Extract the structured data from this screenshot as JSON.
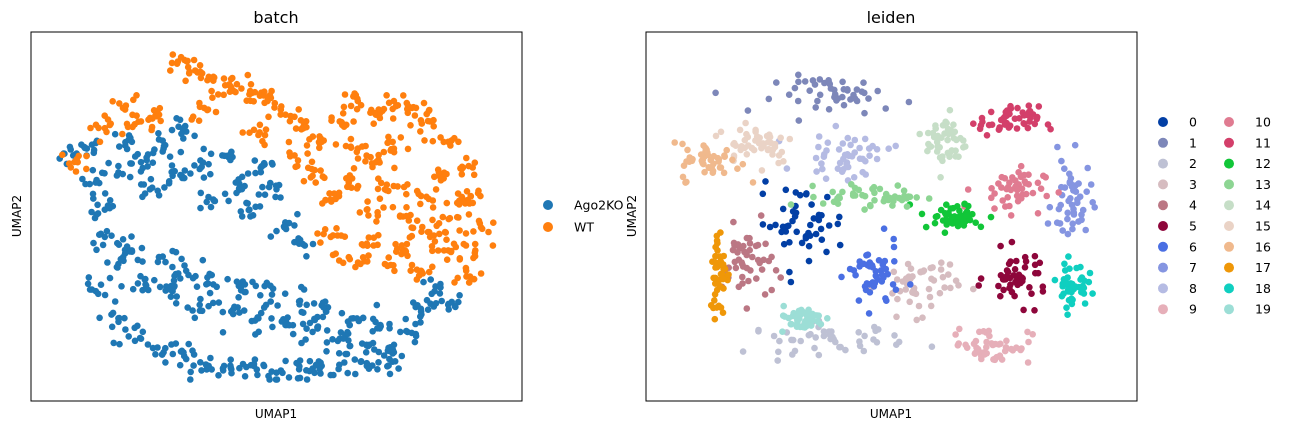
{
  "chart_data": [
    {
      "type": "scatter",
      "title": "batch",
      "xlabel": "UMAP1",
      "ylabel": "UMAP2",
      "xlim": [
        0,
        1
      ],
      "ylim": [
        0,
        1
      ],
      "grid": false,
      "legend_position": "right",
      "series": [
        {
          "name": "Ago2KO",
          "color": "#1f77b4",
          "points": [
            [
              0.05,
              0.68
            ],
            [
              0.08,
              0.7
            ],
            [
              0.1,
              0.6
            ],
            [
              0.12,
              0.52
            ],
            [
              0.15,
              0.63
            ],
            [
              0.18,
              0.72
            ],
            [
              0.2,
              0.66
            ],
            [
              0.22,
              0.58
            ],
            [
              0.25,
              0.7
            ],
            [
              0.27,
              0.62
            ],
            [
              0.3,
              0.75
            ],
            [
              0.33,
              0.64
            ],
            [
              0.36,
              0.55
            ],
            [
              0.38,
              0.68
            ],
            [
              0.41,
              0.6
            ],
            [
              0.44,
              0.52
            ],
            [
              0.47,
              0.65
            ],
            [
              0.5,
              0.58
            ],
            [
              0.52,
              0.48
            ],
            [
              0.55,
              0.42
            ],
            [
              0.12,
              0.44
            ],
            [
              0.15,
              0.36
            ],
            [
              0.18,
              0.4
            ],
            [
              0.21,
              0.3
            ],
            [
              0.24,
              0.38
            ],
            [
              0.27,
              0.28
            ],
            [
              0.3,
              0.34
            ],
            [
              0.33,
              0.24
            ],
            [
              0.36,
              0.3
            ],
            [
              0.4,
              0.22
            ],
            [
              0.43,
              0.3
            ],
            [
              0.46,
              0.2
            ],
            [
              0.49,
              0.27
            ],
            [
              0.52,
              0.18
            ],
            [
              0.55,
              0.25
            ],
            [
              0.58,
              0.16
            ],
            [
              0.61,
              0.22
            ],
            [
              0.64,
              0.14
            ],
            [
              0.67,
              0.2
            ],
            [
              0.7,
              0.12
            ],
            [
              0.73,
              0.18
            ],
            [
              0.76,
              0.1
            ],
            [
              0.79,
              0.16
            ],
            [
              0.82,
              0.22
            ],
            [
              0.85,
              0.28
            ],
            [
              0.88,
              0.24
            ],
            [
              0.2,
              0.14
            ],
            [
              0.25,
              0.1
            ],
            [
              0.3,
              0.08
            ],
            [
              0.35,
              0.06
            ],
            [
              0.4,
              0.05
            ],
            [
              0.45,
              0.06
            ],
            [
              0.5,
              0.04
            ],
            [
              0.55,
              0.05
            ],
            [
              0.6,
              0.06
            ],
            [
              0.65,
              0.07
            ],
            [
              0.7,
              0.06
            ],
            [
              0.75,
              0.08
            ],
            [
              0.15,
              0.2
            ],
            [
              0.1,
              0.28
            ]
          ]
        },
        {
          "name": "WT",
          "color": "#ff7f0e",
          "points": [
            [
              0.28,
              0.95
            ],
            [
              0.32,
              0.93
            ],
            [
              0.36,
              0.9
            ],
            [
              0.4,
              0.88
            ],
            [
              0.44,
              0.86
            ],
            [
              0.48,
              0.84
            ],
            [
              0.52,
              0.8
            ],
            [
              0.56,
              0.76
            ],
            [
              0.6,
              0.72
            ],
            [
              0.64,
              0.78
            ],
            [
              0.68,
              0.84
            ],
            [
              0.72,
              0.8
            ],
            [
              0.76,
              0.84
            ],
            [
              0.8,
              0.82
            ],
            [
              0.84,
              0.78
            ],
            [
              0.88,
              0.72
            ],
            [
              0.91,
              0.64
            ],
            [
              0.93,
              0.56
            ],
            [
              0.95,
              0.48
            ],
            [
              0.94,
              0.4
            ],
            [
              0.92,
              0.34
            ],
            [
              0.58,
              0.62
            ],
            [
              0.62,
              0.55
            ],
            [
              0.66,
              0.6
            ],
            [
              0.7,
              0.52
            ],
            [
              0.74,
              0.58
            ],
            [
              0.78,
              0.5
            ],
            [
              0.82,
              0.56
            ],
            [
              0.86,
              0.48
            ],
            [
              0.88,
              0.4
            ],
            [
              0.62,
              0.44
            ],
            [
              0.66,
              0.38
            ],
            [
              0.7,
              0.42
            ],
            [
              0.74,
              0.36
            ],
            [
              0.78,
              0.4
            ],
            [
              0.82,
              0.34
            ],
            [
              0.84,
              0.44
            ],
            [
              0.76,
              0.7
            ],
            [
              0.72,
              0.66
            ],
            [
              0.68,
              0.7
            ],
            [
              0.24,
              0.8
            ],
            [
              0.2,
              0.78
            ],
            [
              0.16,
              0.82
            ],
            [
              0.12,
              0.76
            ],
            [
              0.06,
              0.66
            ],
            [
              0.34,
              0.82
            ],
            [
              0.46,
              0.74
            ],
            [
              0.54,
              0.68
            ],
            [
              0.86,
              0.62
            ],
            [
              0.9,
              0.54
            ]
          ]
        }
      ]
    },
    {
      "type": "scatter",
      "title": "leiden",
      "xlabel": "UMAP1",
      "ylabel": "UMAP2",
      "xlim": [
        0,
        1
      ],
      "ylim": [
        0,
        1
      ],
      "grid": false,
      "legend_position": "right",
      "series": [
        {
          "name": "0",
          "color": "#023fa5",
          "center": [
            0.3,
            0.48
          ],
          "spread": [
            0.09,
            0.1
          ]
        },
        {
          "name": "1",
          "color": "#7d87b9",
          "center": [
            0.4,
            0.86
          ],
          "spread": [
            0.14,
            0.05
          ]
        },
        {
          "name": "2",
          "color": "#bec1d4",
          "center": [
            0.36,
            0.14
          ],
          "spread": [
            0.16,
            0.04
          ]
        },
        {
          "name": "3",
          "color": "#d6bcc0",
          "center": [
            0.56,
            0.3
          ],
          "spread": [
            0.08,
            0.08
          ]
        },
        {
          "name": "4",
          "color": "#bb7784",
          "center": [
            0.18,
            0.36
          ],
          "spread": [
            0.05,
            0.1
          ]
        },
        {
          "name": "5",
          "color": "#8e063b",
          "center": [
            0.78,
            0.32
          ],
          "spread": [
            0.06,
            0.07
          ]
        },
        {
          "name": "6",
          "color": "#4a6fe3",
          "center": [
            0.46,
            0.32
          ],
          "spread": [
            0.05,
            0.09
          ]
        },
        {
          "name": "7",
          "color": "#8595e1",
          "center": [
            0.9,
            0.54
          ],
          "spread": [
            0.04,
            0.12
          ]
        },
        {
          "name": "8",
          "color": "#b5bbe3",
          "center": [
            0.4,
            0.68
          ],
          "spread": [
            0.09,
            0.06
          ]
        },
        {
          "name": "9",
          "color": "#e6afb9",
          "center": [
            0.72,
            0.12
          ],
          "spread": [
            0.08,
            0.05
          ]
        },
        {
          "name": "10",
          "color": "#e07b91",
          "center": [
            0.76,
            0.58
          ],
          "spread": [
            0.07,
            0.06
          ]
        },
        {
          "name": "11",
          "color": "#d33f6a",
          "center": [
            0.76,
            0.78
          ],
          "spread": [
            0.06,
            0.04
          ]
        },
        {
          "name": "12",
          "color": "#11c638",
          "center": [
            0.64,
            0.5
          ],
          "spread": [
            0.07,
            0.04
          ]
        },
        {
          "name": "13",
          "color": "#8dd593",
          "center": [
            0.46,
            0.56
          ],
          "spread": [
            0.1,
            0.03
          ]
        },
        {
          "name": "14",
          "color": "#c6dec7",
          "center": [
            0.62,
            0.72
          ],
          "spread": [
            0.04,
            0.08
          ]
        },
        {
          "name": "15",
          "color": "#ead3c6",
          "center": [
            0.2,
            0.72
          ],
          "spread": [
            0.08,
            0.06
          ]
        },
        {
          "name": "16",
          "color": "#f0b98d",
          "center": [
            0.1,
            0.66
          ],
          "spread": [
            0.06,
            0.05
          ]
        },
        {
          "name": "17",
          "color": "#ef9708",
          "center": [
            0.12,
            0.34
          ],
          "spread": [
            0.02,
            0.12
          ]
        },
        {
          "name": "18",
          "color": "#0fcfc0",
          "center": [
            0.9,
            0.3
          ],
          "spread": [
            0.03,
            0.06
          ]
        },
        {
          "name": "19",
          "color": "#9cded6",
          "center": [
            0.3,
            0.2
          ],
          "spread": [
            0.05,
            0.03
          ]
        }
      ]
    }
  ]
}
